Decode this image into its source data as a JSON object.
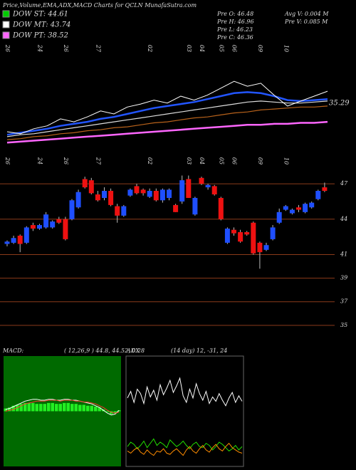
{
  "header": {
    "title": "Price,Volume,EMA,ADX,MACD Charts for QCLN MunafaSutra.com",
    "legend": [
      {
        "label": "DOW ST: 44.61",
        "color": "#00cc00"
      },
      {
        "label": "DOW MT: 43.74",
        "color": "#ffffff"
      },
      {
        "label": "DOW PT: 38.52",
        "color": "#ff66ff"
      }
    ],
    "info": [
      "Pre  O: 46.48",
      "Pre  H: 46.96",
      "Pre  L: 46.23",
      "Pre  C: 46.36",
      "Avg V: 0.004  M",
      "Pre  V: 0.085 M"
    ]
  },
  "chart_data": [
    {
      "type": "line",
      "ylim": [
        40.5,
        51.3
      ],
      "annotation": "35.29",
      "series": [
        {
          "color": "#ff66ff",
          "width": 2.5,
          "values": [
            41.2,
            41.3,
            41.4,
            41.5,
            41.6,
            41.7,
            41.8,
            41.9,
            42.0,
            42.1,
            42.2,
            42.3,
            42.4,
            42.5,
            42.6,
            42.7,
            42.8,
            42.9,
            43.0,
            43.0,
            43.1,
            43.1,
            43.2,
            43.2,
            43.3
          ]
        },
        {
          "color": "#b8621b",
          "width": 1.2,
          "values": [
            41.5,
            41.6,
            41.8,
            41.9,
            42.1,
            42.2,
            42.4,
            42.5,
            42.7,
            42.8,
            43.0,
            43.2,
            43.3,
            43.5,
            43.7,
            43.8,
            44.0,
            44.2,
            44.3,
            44.5,
            44.6,
            44.7,
            44.8,
            44.8,
            44.9
          ]
        },
        {
          "color": "#dddddd",
          "width": 1.2,
          "values": [
            41.8,
            42.0,
            42.1,
            42.3,
            42.5,
            42.7,
            42.9,
            43.1,
            43.3,
            43.5,
            43.7,
            43.9,
            44.1,
            44.3,
            44.5,
            44.7,
            44.9,
            45.1,
            45.3,
            45.4,
            45.3,
            45.2,
            45.2,
            45.3,
            45.4
          ]
        },
        {
          "color": "#2255ff",
          "width": 2.5,
          "values": [
            42.0,
            42.2,
            42.4,
            42.6,
            42.9,
            43.1,
            43.3,
            43.6,
            43.8,
            44.1,
            44.4,
            44.7,
            44.9,
            45.1,
            45.3,
            45.6,
            45.9,
            46.2,
            46.3,
            46.2,
            45.9,
            45.5,
            45.4,
            45.5,
            45.6
          ]
        },
        {
          "color": "#ffffff",
          "width": 1,
          "values": [
            42.3,
            42.1,
            42.6,
            42.9,
            43.6,
            43.3,
            43.8,
            44.4,
            44.1,
            44.8,
            45.1,
            45.5,
            45.2,
            45.9,
            45.5,
            46.0,
            46.7,
            47.4,
            46.9,
            47.2,
            46.0,
            44.9,
            45.4,
            45.9,
            46.4
          ]
        }
      ]
    },
    {
      "type": "candlestick",
      "ylim": [
        33.6,
        49.3
      ],
      "yticks": [
        47,
        44,
        41,
        39,
        37,
        35
      ],
      "up_color": "#1f4fff",
      "down_color": "#ee1111",
      "grid_color": "#8b3a1a",
      "categories": [
        "26",
        null,
        null,
        null,
        null,
        "24",
        null,
        null,
        null,
        "26",
        null,
        null,
        null,
        null,
        "27",
        null,
        null,
        null,
        null,
        null,
        null,
        null,
        "02",
        null,
        null,
        null,
        null,
        null,
        "03",
        null,
        "04",
        null,
        null,
        "05",
        null,
        "06",
        null,
        null,
        null,
        "09",
        null,
        null,
        null,
        "10",
        null,
        null,
        null,
        null,
        null,
        null
      ],
      "open": [
        41.9,
        42.0,
        42.6,
        42.0,
        43.5,
        43.2,
        43.3,
        43.3,
        44.0,
        44.0,
        44.0,
        45.0,
        47.4,
        47.3,
        46.1,
        45.8,
        46.4,
        45.1,
        44.3,
        46.0,
        46.8,
        46.5,
        45.9,
        46.4,
        45.6,
        45.8,
        45.2,
        45.5,
        47.4,
        44.4,
        47.5,
        46.7,
        46.8,
        45.8,
        42.0,
        43.1,
        42.9,
        42.9,
        43.7,
        42.0,
        41.4,
        42.3,
        43.7,
        44.8,
        44.5,
        45.0,
        44.6,
        45.0,
        45.7,
        46.7
      ],
      "high": [
        42.2,
        42.6,
        42.7,
        43.4,
        43.7,
        43.6,
        44.6,
        43.9,
        44.2,
        44.2,
        45.7,
        46.5,
        47.6,
        47.5,
        46.4,
        46.7,
        46.6,
        45.3,
        45.2,
        46.6,
        47.0,
        46.6,
        46.6,
        46.6,
        46.6,
        46.6,
        45.3,
        47.7,
        47.7,
        45.9,
        47.6,
        47.0,
        46.9,
        45.9,
        43.3,
        43.3,
        43.1,
        43.0,
        43.8,
        42.1,
        42.0,
        43.5,
        44.9,
        45.2,
        44.9,
        45.2,
        45.4,
        45.5,
        46.5,
        47.1
      ],
      "low": [
        41.7,
        41.9,
        41.2,
        41.9,
        43.0,
        43.1,
        43.2,
        43.2,
        43.6,
        42.2,
        43.9,
        44.9,
        46.6,
        46.1,
        45.5,
        45.6,
        45.1,
        43.7,
        44.2,
        45.9,
        46.1,
        46.0,
        45.8,
        45.5,
        45.4,
        45.6,
        44.6,
        45.3,
        45.8,
        44.3,
        46.9,
        46.5,
        46.0,
        43.9,
        41.9,
        42.6,
        42.0,
        42.6,
        41.0,
        39.8,
        41.3,
        42.2,
        43.6,
        44.7,
        44.4,
        44.6,
        44.5,
        44.9,
        45.6,
        46.3
      ],
      "close": [
        42.1,
        42.4,
        41.9,
        43.3,
        43.2,
        43.5,
        44.4,
        43.8,
        43.7,
        42.3,
        45.6,
        46.3,
        46.7,
        46.2,
        45.6,
        46.4,
        45.2,
        44.3,
        45.1,
        46.5,
        46.2,
        46.2,
        46.4,
        45.6,
        46.5,
        46.5,
        44.6,
        47.3,
        45.8,
        45.8,
        47.0,
        46.9,
        46.1,
        44.0,
        43.2,
        42.8,
        42.1,
        42.7,
        41.1,
        41.2,
        41.8,
        43.3,
        44.6,
        45.1,
        44.8,
        44.8,
        45.3,
        45.4,
        46.4,
        46.4
      ]
    },
    {
      "type": "macd",
      "title": "MACD:",
      "params": "( 12,26,9 ) 44.8, 44.52, 0.28",
      "ylim": [
        -6,
        6
      ],
      "background": "#006a00",
      "histogram": {
        "color": "#22ee22",
        "values": [
          0.3,
          0.4,
          0.6,
          0.7,
          0.8,
          0.9,
          0.9,
          0.9,
          0.8,
          0.8,
          0.8,
          0.9,
          0.9,
          0.8,
          0.8,
          0.9,
          0.9,
          0.8,
          0.8,
          0.7,
          0.7,
          0.6,
          0.6,
          0.5,
          0.4,
          0.2,
          -0.1,
          -0.3,
          -0.2,
          0.1
        ]
      },
      "series": [
        {
          "color": "#ffffff",
          "values": [
            0.2,
            0.3,
            0.5,
            0.7,
            0.9,
            1.1,
            1.2,
            1.3,
            1.3,
            1.2,
            1.2,
            1.3,
            1.3,
            1.2,
            1.2,
            1.3,
            1.3,
            1.2,
            1.2,
            1.1,
            1.0,
            0.9,
            0.8,
            0.6,
            0.4,
            0.1,
            -0.2,
            -0.4,
            -0.3,
            0.1
          ]
        },
        {
          "color": "#ff3333",
          "values": [
            0.0,
            0.1,
            0.2,
            0.4,
            0.6,
            0.8,
            0.9,
            1.0,
            1.1,
            1.1,
            1.1,
            1.2,
            1.2,
            1.2,
            1.1,
            1.2,
            1.2,
            1.2,
            1.1,
            1.1,
            1.0,
            1.0,
            0.9,
            0.8,
            0.6,
            0.4,
            0.1,
            -0.1,
            -0.2,
            -0.1
          ]
        }
      ]
    },
    {
      "type": "adx",
      "title": "ADX",
      "params": "(14 day) 12, -31, 24",
      "ylim": [
        0,
        100
      ],
      "series": [
        {
          "color": "#ffffff",
          "values": [
            62,
            68,
            58,
            70,
            66,
            57,
            72,
            63,
            69,
            60,
            74,
            65,
            71,
            78,
            67,
            73,
            80,
            64,
            58,
            70,
            62,
            75,
            66,
            60,
            68,
            57,
            63,
            59,
            66,
            60,
            55,
            62,
            67,
            58,
            64,
            59
          ]
        },
        {
          "color": "#22dd00",
          "values": [
            18,
            22,
            20,
            16,
            19,
            23,
            17,
            21,
            25,
            19,
            22,
            20,
            17,
            24,
            21,
            18,
            20,
            23,
            19,
            16,
            20,
            22,
            18,
            17,
            21,
            19,
            15,
            18,
            22,
            20,
            17,
            14,
            16,
            19,
            15,
            18
          ]
        },
        {
          "color": "#ff8c00",
          "values": [
            14,
            12,
            15,
            17,
            13,
            11,
            15,
            12,
            10,
            14,
            13,
            16,
            12,
            11,
            14,
            16,
            13,
            10,
            15,
            18,
            14,
            12,
            16,
            19,
            15,
            13,
            17,
            20,
            16,
            14,
            18,
            21,
            17,
            15,
            13,
            12
          ]
        }
      ]
    }
  ]
}
